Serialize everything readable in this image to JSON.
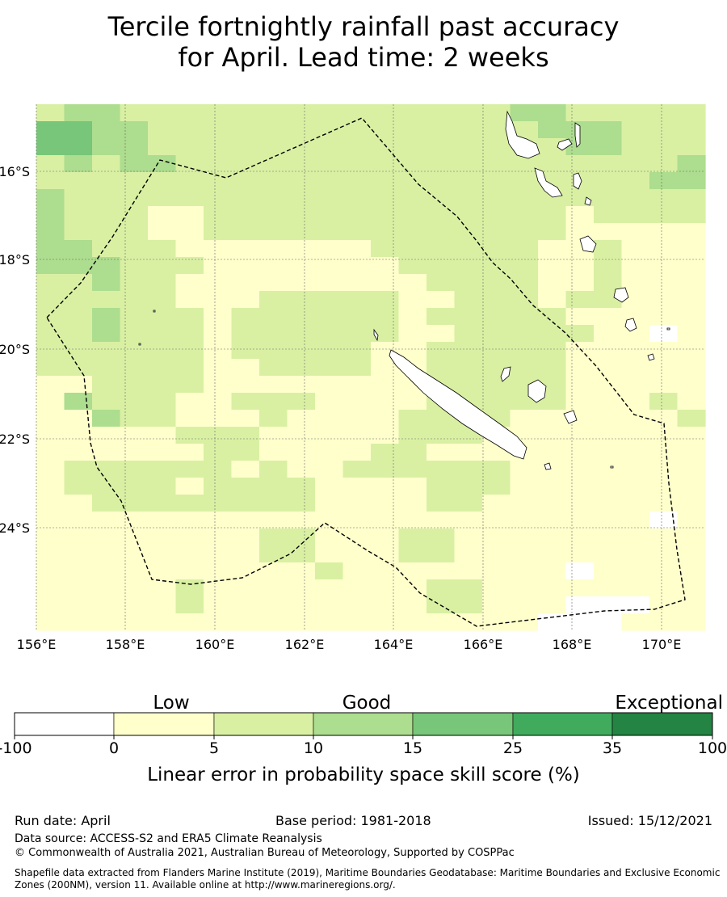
{
  "title_line1": "Tercile fortnightly rainfall past accuracy",
  "title_line2": "for April. Lead time: 2 weeks",
  "map": {
    "lon_labels": [
      "156°E",
      "158°E",
      "160°E",
      "162°E",
      "164°E",
      "166°E",
      "168°E",
      "170°E"
    ],
    "lat_labels": [
      "16°S",
      "18°S",
      "20°S",
      "22°S",
      "24°S"
    ],
    "colors": [
      "#ffffff",
      "#ffffcc",
      "#d9f0a3",
      "#addd8e",
      "#78c679",
      "#41ab5d",
      "#238443"
    ],
    "grid": [
      "233222222222222223322222",
      "443322222222222222333222",
      "443322222222222222233222",
      "232332222222222222222223",
      "222222222222222222222233",
      "322222222222222222222222",
      "322211222222222222212222",
      "322211222222222222211111",
      "332221111111222222112111",
      "333222111111122222112111",
      "223221111111112222112111",
      "222221112222211222122111",
      "223222122222212222211111",
      "223222122222211222221101",
      "222222122222112222211111",
      "222222112222112222211111",
      "112222111111112222211111",
      "132221122211112222211121",
      "113221112111122221111112",
      "111112221111122211111111",
      "111111221111221111111111",
      "122222212112222221111111",
      "122221222211112221111111",
      "112222222211112211111111",
      "111111111111111111111101",
      "111111112211122111111111",
      "111111112211122111111111",
      "111111111121111111101111",
      "111112111111112211111111",
      "111112111111112211100011",
      "111111111111111111000111"
    ]
  },
  "legend": {
    "labels": [
      "Low",
      "Good",
      "Exceptional"
    ],
    "ticks": [
      "-100",
      "0",
      "5",
      "10",
      "15",
      "25",
      "35",
      "100"
    ],
    "title": "Linear error in probability space skill score (%)"
  },
  "footer": {
    "run_date": "Run date: April",
    "base_period": "Base period: 1981-2018",
    "issued": "Issued: 15/12/2021",
    "data_source": "Data source: ACCESS-S2 and ERA5 Climate Reanalysis",
    "copyright": "© Commonwealth of Australia 2021, Australian Bureau of Meteorology, Supported by COSPPac",
    "shapefile1": "Shapefile data extracted from Flanders Marine Institute (2019), Maritime Boundaries Geodatabase: Maritime Boundaries and Exclusive Economic",
    "shapefile2": "Zones (200NM), version 11. Available online at http://www.marineregions.org/."
  }
}
